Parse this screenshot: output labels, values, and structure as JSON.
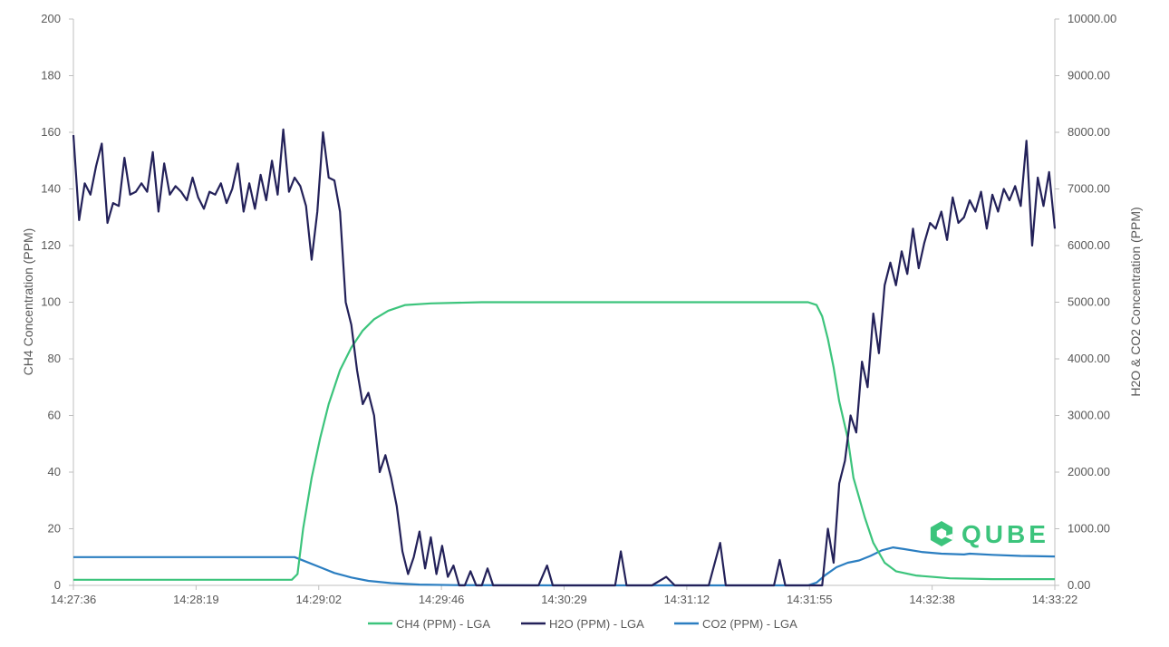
{
  "chart_data": {
    "type": "line",
    "ylabel_left": "CH4 Concentration (PPM)",
    "ylabel_right": "H2O & CO2 Concentration (PPM)",
    "ylim_left": [
      0,
      200
    ],
    "ylim_right": [
      0,
      10000
    ],
    "yticks_left": [
      "0",
      "20",
      "40",
      "60",
      "80",
      "100",
      "120",
      "140",
      "160",
      "180",
      "200"
    ],
    "yticks_right": [
      "0.00",
      "1000.00",
      "2000.00",
      "3000.00",
      "4000.00",
      "5000.00",
      "6000.00",
      "7000.00",
      "8000.00",
      "9000.00",
      "10000.00"
    ],
    "x_tick_labels": [
      "14:27:36",
      "14:28:19",
      "14:29:02",
      "14:29:46",
      "14:30:29",
      "14:31:12",
      "14:31:55",
      "14:32:38",
      "14:33:22"
    ],
    "xlim": [
      "14:27:36",
      "14:33:22"
    ],
    "grid": false,
    "legend_position": "bottom",
    "series": [
      {
        "name": "CH4 (PPM) - LGA",
        "axis": "left",
        "color": "#3cc47c",
        "points": [
          [
            "14:27:36",
            2
          ],
          [
            "14:28:30",
            2
          ],
          [
            "14:28:53",
            2
          ],
          [
            "14:28:55",
            4
          ],
          [
            "14:28:57",
            20
          ],
          [
            "14:29:00",
            38
          ],
          [
            "14:29:03",
            52
          ],
          [
            "14:29:06",
            64
          ],
          [
            "14:29:10",
            76
          ],
          [
            "14:29:14",
            84
          ],
          [
            "14:29:18",
            90
          ],
          [
            "14:29:22",
            94
          ],
          [
            "14:29:27",
            97
          ],
          [
            "14:29:33",
            99
          ],
          [
            "14:29:42",
            99.6
          ],
          [
            "14:30:00",
            100
          ],
          [
            "14:30:30",
            100
          ],
          [
            "14:31:00",
            100
          ],
          [
            "14:31:30",
            100
          ],
          [
            "14:31:55",
            100
          ],
          [
            "14:31:58",
            99
          ],
          [
            "14:32:00",
            95
          ],
          [
            "14:32:02",
            87
          ],
          [
            "14:32:04",
            77
          ],
          [
            "14:32:06",
            65
          ],
          [
            "14:32:09",
            52
          ],
          [
            "14:32:11",
            38
          ],
          [
            "14:32:15",
            24
          ],
          [
            "14:32:18",
            15
          ],
          [
            "14:32:22",
            8
          ],
          [
            "14:32:26",
            5
          ],
          [
            "14:32:33",
            3.5
          ],
          [
            "14:32:45",
            2.5
          ],
          [
            "14:33:00",
            2.2
          ],
          [
            "14:33:22",
            2.2
          ]
        ]
      },
      {
        "name": "H2O (PPM) - LGA",
        "axis": "right",
        "color": "#232159",
        "points": [
          [
            "14:27:36",
            7950
          ],
          [
            "14:27:38",
            6450
          ],
          [
            "14:27:40",
            7100
          ],
          [
            "14:27:42",
            6900
          ],
          [
            "14:27:44",
            7400
          ],
          [
            "14:27:46",
            7800
          ],
          [
            "14:27:48",
            6400
          ],
          [
            "14:27:50",
            6750
          ],
          [
            "14:27:52",
            6700
          ],
          [
            "14:27:54",
            7550
          ],
          [
            "14:27:56",
            6900
          ],
          [
            "14:27:58",
            6950
          ],
          [
            "14:28:00",
            7100
          ],
          [
            "14:28:02",
            6950
          ],
          [
            "14:28:04",
            7650
          ],
          [
            "14:28:06",
            6600
          ],
          [
            "14:28:08",
            7450
          ],
          [
            "14:28:10",
            6900
          ],
          [
            "14:28:12",
            7050
          ],
          [
            "14:28:14",
            6950
          ],
          [
            "14:28:16",
            6800
          ],
          [
            "14:28:18",
            7200
          ],
          [
            "14:28:20",
            6850
          ],
          [
            "14:28:22",
            6650
          ],
          [
            "14:28:24",
            6950
          ],
          [
            "14:28:26",
            6900
          ],
          [
            "14:28:28",
            7100
          ],
          [
            "14:28:30",
            6750
          ],
          [
            "14:28:32",
            7000
          ],
          [
            "14:28:34",
            7450
          ],
          [
            "14:28:36",
            6600
          ],
          [
            "14:28:38",
            7100
          ],
          [
            "14:28:40",
            6650
          ],
          [
            "14:28:42",
            7250
          ],
          [
            "14:28:44",
            6800
          ],
          [
            "14:28:46",
            7500
          ],
          [
            "14:28:48",
            6900
          ],
          [
            "14:28:50",
            8050
          ],
          [
            "14:28:52",
            6950
          ],
          [
            "14:28:54",
            7200
          ],
          [
            "14:28:56",
            7050
          ],
          [
            "14:28:58",
            6700
          ],
          [
            "14:29:00",
            5750
          ],
          [
            "14:29:02",
            6600
          ],
          [
            "14:29:04",
            8000
          ],
          [
            "14:29:06",
            7200
          ],
          [
            "14:29:08",
            7150
          ],
          [
            "14:29:10",
            6600
          ],
          [
            "14:29:12",
            5000
          ],
          [
            "14:29:14",
            4600
          ],
          [
            "14:29:16",
            3800
          ],
          [
            "14:29:18",
            3200
          ],
          [
            "14:29:20",
            3400
          ],
          [
            "14:29:22",
            3000
          ],
          [
            "14:29:24",
            2000
          ],
          [
            "14:29:26",
            2300
          ],
          [
            "14:29:28",
            1900
          ],
          [
            "14:29:30",
            1400
          ],
          [
            "14:29:32",
            600
          ],
          [
            "14:29:34",
            200
          ],
          [
            "14:29:36",
            500
          ],
          [
            "14:29:38",
            950
          ],
          [
            "14:29:40",
            300
          ],
          [
            "14:29:42",
            850
          ],
          [
            "14:29:44",
            200
          ],
          [
            "14:29:46",
            700
          ],
          [
            "14:29:48",
            150
          ],
          [
            "14:29:50",
            350
          ],
          [
            "14:29:52",
            0
          ],
          [
            "14:29:54",
            0
          ],
          [
            "14:29:56",
            250
          ],
          [
            "14:29:58",
            0
          ],
          [
            "14:30:00",
            0
          ],
          [
            "14:30:02",
            300
          ],
          [
            "14:30:04",
            0
          ],
          [
            "14:30:10",
            0
          ],
          [
            "14:30:12",
            0
          ],
          [
            "14:30:20",
            0
          ],
          [
            "14:30:23",
            350
          ],
          [
            "14:30:25",
            0
          ],
          [
            "14:30:27",
            0
          ],
          [
            "14:30:30",
            0
          ],
          [
            "14:30:35",
            0
          ],
          [
            "14:30:42",
            0
          ],
          [
            "14:30:47",
            0
          ],
          [
            "14:30:49",
            600
          ],
          [
            "14:30:51",
            0
          ],
          [
            "14:30:55",
            0
          ],
          [
            "14:30:58",
            0
          ],
          [
            "14:31:00",
            0
          ],
          [
            "14:31:05",
            150
          ],
          [
            "14:31:08",
            0
          ],
          [
            "14:31:12",
            0
          ],
          [
            "14:31:20",
            0
          ],
          [
            "14:31:24",
            750
          ],
          [
            "14:31:26",
            0
          ],
          [
            "14:31:35",
            0
          ],
          [
            "14:31:43",
            0
          ],
          [
            "14:31:45",
            450
          ],
          [
            "14:31:47",
            0
          ],
          [
            "14:31:55",
            0
          ],
          [
            "14:32:00",
            0
          ],
          [
            "14:32:02",
            1000
          ],
          [
            "14:32:04",
            400
          ],
          [
            "14:32:06",
            1800
          ],
          [
            "14:32:08",
            2200
          ],
          [
            "14:32:10",
            3000
          ],
          [
            "14:32:12",
            2700
          ],
          [
            "14:32:14",
            3950
          ],
          [
            "14:32:16",
            3500
          ],
          [
            "14:32:18",
            4800
          ],
          [
            "14:32:20",
            4100
          ],
          [
            "14:32:22",
            5300
          ],
          [
            "14:32:24",
            5700
          ],
          [
            "14:32:26",
            5300
          ],
          [
            "14:32:28",
            5900
          ],
          [
            "14:32:30",
            5500
          ],
          [
            "14:32:32",
            6300
          ],
          [
            "14:32:34",
            5600
          ],
          [
            "14:32:36",
            6050
          ],
          [
            "14:32:38",
            6400
          ],
          [
            "14:32:40",
            6300
          ],
          [
            "14:32:42",
            6600
          ],
          [
            "14:32:44",
            6100
          ],
          [
            "14:32:46",
            6850
          ],
          [
            "14:32:48",
            6400
          ],
          [
            "14:32:50",
            6500
          ],
          [
            "14:32:52",
            6800
          ],
          [
            "14:32:54",
            6600
          ],
          [
            "14:32:56",
            6950
          ],
          [
            "14:32:58",
            6300
          ],
          [
            "14:33:00",
            6900
          ],
          [
            "14:33:02",
            6600
          ],
          [
            "14:33:04",
            7000
          ],
          [
            "14:33:06",
            6800
          ],
          [
            "14:33:08",
            7050
          ],
          [
            "14:33:10",
            6700
          ],
          [
            "14:33:12",
            7850
          ],
          [
            "14:33:14",
            6000
          ],
          [
            "14:33:16",
            7200
          ],
          [
            "14:33:18",
            6700
          ],
          [
            "14:33:20",
            7300
          ],
          [
            "14:33:22",
            6300
          ]
        ]
      },
      {
        "name": "CO2 (PPM) - LGA",
        "axis": "right",
        "color": "#2b7ec1",
        "points": [
          [
            "14:27:36",
            500
          ],
          [
            "14:28:30",
            500
          ],
          [
            "14:28:54",
            500
          ],
          [
            "14:28:58",
            420
          ],
          [
            "14:29:03",
            320
          ],
          [
            "14:29:08",
            220
          ],
          [
            "14:29:14",
            140
          ],
          [
            "14:29:20",
            80
          ],
          [
            "14:29:28",
            40
          ],
          [
            "14:29:38",
            15
          ],
          [
            "14:29:50",
            5
          ],
          [
            "14:30:30",
            0
          ],
          [
            "14:31:30",
            0
          ],
          [
            "14:31:55",
            0
          ],
          [
            "14:31:58",
            50
          ],
          [
            "14:32:01",
            180
          ],
          [
            "14:32:05",
            320
          ],
          [
            "14:32:09",
            400
          ],
          [
            "14:32:13",
            440
          ],
          [
            "14:32:17",
            520
          ],
          [
            "14:32:21",
            620
          ],
          [
            "14:32:25",
            670
          ],
          [
            "14:32:29",
            640
          ],
          [
            "14:32:35",
            590
          ],
          [
            "14:32:42",
            560
          ],
          [
            "14:32:50",
            545
          ],
          [
            "14:32:52",
            560
          ],
          [
            "14:33:00",
            540
          ],
          [
            "14:33:10",
            520
          ],
          [
            "14:33:22",
            510
          ]
        ]
      }
    ]
  },
  "logo": {
    "text": "QUBE",
    "color": "#3cc47c"
  }
}
